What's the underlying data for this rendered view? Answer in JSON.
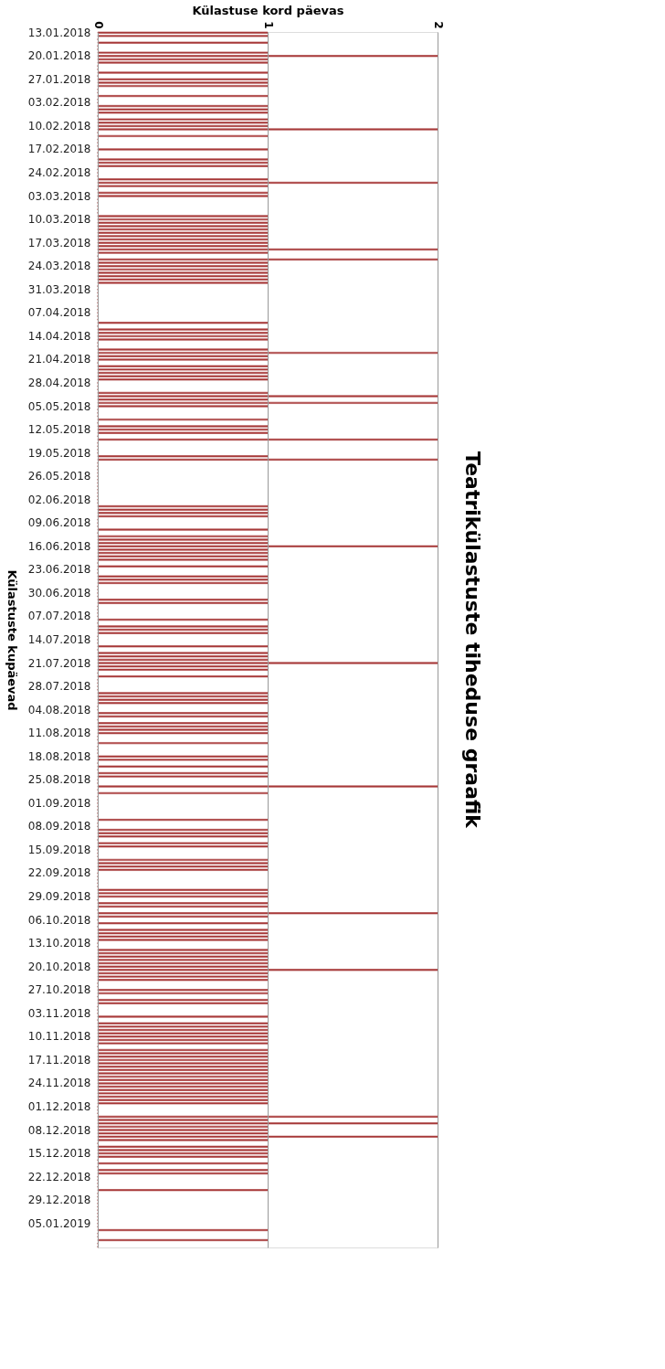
{
  "chart_data": {
    "type": "bar",
    "orientation": "horizontal",
    "title": "Teatrikülastuste tiheduse graafik",
    "xlabel": "Külastuse kord päevas",
    "ylabel": "Külastuste kupäevad",
    "color": "#a83a3a",
    "xlim": [
      0,
      2
    ],
    "xticks": [
      0,
      1,
      2
    ],
    "grid": "x",
    "categories": [
      "13.01.2018",
      null,
      null,
      null,
      null,
      null,
      null,
      "20.01.2018",
      null,
      null,
      null,
      null,
      null,
      null,
      "27.01.2018",
      null,
      null,
      null,
      null,
      null,
      null,
      "03.02.2018",
      null,
      null,
      null,
      null,
      null,
      null,
      "10.02.2018",
      null,
      null,
      null,
      null,
      null,
      null,
      "17.02.2018",
      null,
      null,
      null,
      null,
      null,
      null,
      "24.02.2018",
      null,
      null,
      null,
      null,
      null,
      null,
      "03.03.2018",
      null,
      null,
      null,
      null,
      null,
      null,
      "10.03.2018",
      null,
      null,
      null,
      null,
      null,
      null,
      "17.03.2018",
      null,
      null,
      null,
      null,
      null,
      null,
      "24.03.2018",
      null,
      null,
      null,
      null,
      null,
      null,
      "31.03.2018",
      null,
      null,
      null,
      null,
      null,
      null,
      "07.04.2018",
      null,
      null,
      null,
      null,
      null,
      null,
      "14.04.2018",
      null,
      null,
      null,
      null,
      null,
      null,
      "21.04.2018",
      null,
      null,
      null,
      null,
      null,
      null,
      "28.04.2018",
      null,
      null,
      null,
      null,
      null,
      null,
      "05.05.2018",
      null,
      null,
      null,
      null,
      null,
      null,
      "12.05.2018",
      null,
      null,
      null,
      null,
      null,
      null,
      "19.05.2018",
      null,
      null,
      null,
      null,
      null,
      null,
      "26.05.2018",
      null,
      null,
      null,
      null,
      null,
      null,
      "02.06.2018",
      null,
      null,
      null,
      null,
      null,
      null,
      "09.06.2018",
      null,
      null,
      null,
      null,
      null,
      null,
      "16.06.2018",
      null,
      null,
      null,
      null,
      null,
      null,
      "23.06.2018",
      null,
      null,
      null,
      null,
      null,
      null,
      "30.06.2018",
      null,
      null,
      null,
      null,
      null,
      null,
      "07.07.2018",
      null,
      null,
      null,
      null,
      null,
      null,
      "14.07.2018",
      null,
      null,
      null,
      null,
      null,
      null,
      "21.07.2018",
      null,
      null,
      null,
      null,
      null,
      null,
      "28.07.2018",
      null,
      null,
      null,
      null,
      null,
      null,
      "04.08.2018",
      null,
      null,
      null,
      null,
      null,
      null,
      "11.08.2018",
      null,
      null,
      null,
      null,
      null,
      null,
      "18.08.2018",
      null,
      null,
      null,
      null,
      null,
      null,
      "25.08.2018",
      null,
      null,
      null,
      null,
      null,
      null,
      "01.09.2018",
      null,
      null,
      null,
      null,
      null,
      null,
      "08.09.2018",
      null,
      null,
      null,
      null,
      null,
      null,
      "15.09.2018",
      null,
      null,
      null,
      null,
      null,
      null,
      "22.09.2018",
      null,
      null,
      null,
      null,
      null,
      null,
      "29.09.2018",
      null,
      null,
      null,
      null,
      null,
      null,
      "06.10.2018",
      null,
      null,
      null,
      null,
      null,
      null,
      "13.10.2018",
      null,
      null,
      null,
      null,
      null,
      null,
      "20.10.2018",
      null,
      null,
      null,
      null,
      null,
      null,
      "27.10.2018",
      null,
      null,
      null,
      null,
      null,
      null,
      "03.11.2018",
      null,
      null,
      null,
      null,
      null,
      null,
      "10.11.2018",
      null,
      null,
      null,
      null,
      null,
      null,
      "17.11.2018",
      null,
      null,
      null,
      null,
      null,
      null,
      "24.11.2018",
      null,
      null,
      null,
      null,
      null,
      null,
      "01.12.2018",
      null,
      null,
      null,
      null,
      null,
      null,
      "08.12.2018",
      null,
      null,
      null,
      null,
      null,
      null,
      "15.12.2018",
      null,
      null,
      null,
      null,
      null,
      null,
      "22.12.2018",
      null,
      null,
      null,
      null,
      null,
      null,
      "29.12.2018",
      null,
      null,
      null,
      null,
      null,
      null,
      "05.01.2019",
      null,
      null,
      null,
      null,
      null,
      null,
      null
    ],
    "values": [
      1,
      1,
      0,
      1,
      0,
      0,
      1,
      2,
      1,
      1,
      0,
      0,
      1,
      0,
      1,
      1,
      1,
      0,
      0,
      1,
      0,
      0,
      1,
      1,
      1,
      0,
      1,
      1,
      1,
      2,
      0,
      1,
      0,
      0,
      0,
      1,
      0,
      0,
      1,
      1,
      1,
      0,
      0,
      0,
      1,
      2,
      1,
      0,
      1,
      1,
      0,
      0,
      0,
      0,
      0,
      1,
      1,
      1,
      1,
      1,
      1,
      1,
      1,
      1,
      1,
      2,
      1,
      0,
      2,
      1,
      1,
      1,
      1,
      1,
      1,
      1,
      0,
      0,
      0,
      0,
      0,
      0,
      0,
      0,
      0,
      0,
      0,
      1,
      0,
      1,
      1,
      1,
      1,
      0,
      0,
      1,
      2,
      1,
      1,
      0,
      1,
      1,
      1,
      1,
      1,
      0,
      0,
      0,
      1,
      2,
      1,
      2,
      1,
      0,
      0,
      0,
      1,
      0,
      1,
      1,
      1,
      0,
      2,
      0,
      0,
      0,
      0,
      1,
      2,
      0,
      0,
      0,
      0,
      0,
      0,
      0,
      0,
      0,
      0,
      0,
      0,
      0,
      1,
      1,
      1,
      1,
      0,
      0,
      0,
      1,
      0,
      1,
      1,
      1,
      2,
      1,
      1,
      1,
      1,
      0,
      1,
      0,
      0,
      1,
      1,
      1,
      0,
      0,
      0,
      0,
      1,
      1,
      0,
      0,
      0,
      0,
      1,
      0,
      1,
      1,
      1,
      0,
      0,
      0,
      1,
      0,
      1,
      1,
      1,
      2,
      1,
      1,
      0,
      1,
      0,
      0,
      0,
      0,
      1,
      1,
      1,
      1,
      0,
      0,
      1,
      1,
      0,
      1,
      1,
      1,
      1,
      0,
      0,
      1,
      0,
      0,
      0,
      1,
      1,
      0,
      1,
      0,
      1,
      1,
      0,
      0,
      2,
      0,
      1,
      0,
      0,
      0,
      0,
      0,
      0,
      0,
      1,
      0,
      0,
      1,
      1,
      1,
      0,
      1,
      1,
      0,
      0,
      0,
      1,
      1,
      1,
      1,
      0,
      0,
      0,
      0,
      0,
      1,
      1,
      1,
      0,
      1,
      1,
      0,
      2,
      1,
      0,
      1,
      0,
      1,
      1,
      1,
      1,
      0,
      0,
      1,
      1,
      1,
      1,
      1,
      1,
      2,
      1,
      1,
      1,
      0,
      0,
      1,
      1,
      0,
      1,
      1,
      0,
      0,
      0,
      1,
      0,
      1,
      1,
      1,
      1,
      1,
      1,
      1,
      0,
      1,
      1,
      1,
      1,
      1,
      1,
      1,
      1,
      1,
      1,
      1,
      1,
      1,
      1,
      1,
      1,
      1,
      0,
      0,
      0,
      2,
      1,
      2,
      1,
      1,
      1,
      2,
      1,
      0,
      1,
      1,
      1,
      1,
      0,
      1,
      0,
      1,
      1,
      0,
      0,
      0,
      0,
      1,
      0,
      0,
      0,
      0,
      0,
      0,
      0,
      0,
      0,
      0,
      0,
      1,
      0,
      0,
      1,
      0,
      0
    ]
  }
}
